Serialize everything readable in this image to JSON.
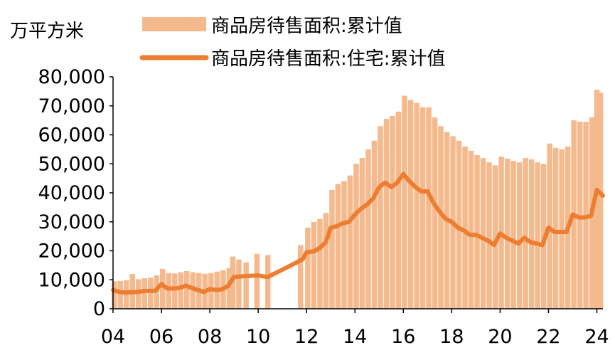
{
  "chart_data": {
    "type": "bar+line",
    "unit": "万平方米",
    "x_tick_labels": [
      "04",
      "06",
      "08",
      "10",
      "12",
      "14",
      "16",
      "18",
      "20",
      "22",
      "24"
    ],
    "x_range": [
      2004.0,
      2024.25
    ],
    "y_tick_labels": [
      "0",
      "10,000",
      "20,000",
      "30,000",
      "40,000",
      "50,000",
      "60,000",
      "70,000",
      "80,000"
    ],
    "ylim": [
      0,
      80000
    ],
    "legend_position": "top",
    "grid": false,
    "series": [
      {
        "name": "商品房待售面积:累计值",
        "type": "bar",
        "color": "#F4B98C",
        "points": [
          [
            2004.05,
            9500
          ],
          [
            2004.3,
            9600
          ],
          [
            2004.55,
            9800
          ],
          [
            2004.8,
            12000
          ],
          [
            2005.05,
            10200
          ],
          [
            2005.3,
            10500
          ],
          [
            2005.55,
            10700
          ],
          [
            2005.8,
            11500
          ],
          [
            2006.05,
            13800
          ],
          [
            2006.3,
            12300
          ],
          [
            2006.55,
            12200
          ],
          [
            2006.8,
            12600
          ],
          [
            2007.05,
            13000
          ],
          [
            2007.3,
            12600
          ],
          [
            2007.55,
            12300
          ],
          [
            2007.8,
            12100
          ],
          [
            2008.05,
            12300
          ],
          [
            2008.3,
            12800
          ],
          [
            2008.55,
            13300
          ],
          [
            2008.8,
            14000
          ],
          [
            2008.95,
            18000
          ],
          [
            2009.2,
            17000
          ],
          [
            2009.5,
            16000
          ],
          [
            2009.95,
            19000
          ],
          [
            2010.4,
            18500
          ],
          [
            2011.75,
            22000
          ],
          [
            2012.05,
            28000
          ],
          [
            2012.3,
            30000
          ],
          [
            2012.55,
            31000
          ],
          [
            2012.8,
            33000
          ],
          [
            2013.05,
            41000
          ],
          [
            2013.3,
            43000
          ],
          [
            2013.55,
            44000
          ],
          [
            2013.8,
            46000
          ],
          [
            2014.05,
            50000
          ],
          [
            2014.3,
            52000
          ],
          [
            2014.55,
            55000
          ],
          [
            2014.8,
            58000
          ],
          [
            2015.05,
            63000
          ],
          [
            2015.3,
            65500
          ],
          [
            2015.55,
            66500
          ],
          [
            2015.8,
            68000
          ],
          [
            2016.05,
            73500
          ],
          [
            2016.3,
            72000
          ],
          [
            2016.55,
            71000
          ],
          [
            2016.8,
            69500
          ],
          [
            2017.05,
            69500
          ],
          [
            2017.3,
            66000
          ],
          [
            2017.55,
            63000
          ],
          [
            2017.8,
            61000
          ],
          [
            2018.05,
            59500
          ],
          [
            2018.3,
            58000
          ],
          [
            2018.55,
            56000
          ],
          [
            2018.8,
            54500
          ],
          [
            2019.05,
            53000
          ],
          [
            2019.3,
            52000
          ],
          [
            2019.55,
            50500
          ],
          [
            2019.8,
            49500
          ],
          [
            2020.05,
            52500
          ],
          [
            2020.3,
            51800
          ],
          [
            2020.55,
            51000
          ],
          [
            2020.8,
            50500
          ],
          [
            2021.05,
            52000
          ],
          [
            2021.3,
            51500
          ],
          [
            2021.55,
            50500
          ],
          [
            2021.8,
            50000
          ],
          [
            2022.05,
            57000
          ],
          [
            2022.3,
            55500
          ],
          [
            2022.55,
            55000
          ],
          [
            2022.8,
            56000
          ],
          [
            2023.05,
            65000
          ],
          [
            2023.3,
            64500
          ],
          [
            2023.55,
            64500
          ],
          [
            2023.8,
            66000
          ],
          [
            2024.0,
            75500
          ],
          [
            2024.15,
            74500
          ]
        ]
      },
      {
        "name": "商品房待售面积:住宅:累计值",
        "type": "line",
        "color": "#ED7D31",
        "points": [
          [
            2004.0,
            6500
          ],
          [
            2004.25,
            5800
          ],
          [
            2004.5,
            5600
          ],
          [
            2004.75,
            5700
          ],
          [
            2005.0,
            5800
          ],
          [
            2005.25,
            6100
          ],
          [
            2005.5,
            6200
          ],
          [
            2005.75,
            6200
          ],
          [
            2006.0,
            8500
          ],
          [
            2006.25,
            7000
          ],
          [
            2006.5,
            7000
          ],
          [
            2006.75,
            7200
          ],
          [
            2007.0,
            8000
          ],
          [
            2007.25,
            7200
          ],
          [
            2007.5,
            6500
          ],
          [
            2007.75,
            5800
          ],
          [
            2008.0,
            6800
          ],
          [
            2008.25,
            6500
          ],
          [
            2008.5,
            6700
          ],
          [
            2008.75,
            7800
          ],
          [
            2009.0,
            11000
          ],
          [
            2009.5,
            11300
          ],
          [
            2010.0,
            11500
          ],
          [
            2010.2,
            11200
          ],
          [
            2010.4,
            11000
          ],
          [
            2011.0,
            13500
          ],
          [
            2011.6,
            16000
          ],
          [
            2011.85,
            17200
          ],
          [
            2012.0,
            19500
          ],
          [
            2012.3,
            19800
          ],
          [
            2012.55,
            21000
          ],
          [
            2012.8,
            23000
          ],
          [
            2013.0,
            28000
          ],
          [
            2013.25,
            28500
          ],
          [
            2013.5,
            29500
          ],
          [
            2013.75,
            30000
          ],
          [
            2014.0,
            32500
          ],
          [
            2014.25,
            34500
          ],
          [
            2014.5,
            36000
          ],
          [
            2014.75,
            38000
          ],
          [
            2015.0,
            42000
          ],
          [
            2015.25,
            43500
          ],
          [
            2015.5,
            42000
          ],
          [
            2015.75,
            43500
          ],
          [
            2016.0,
            46500
          ],
          [
            2016.25,
            44000
          ],
          [
            2016.5,
            42000
          ],
          [
            2016.75,
            40500
          ],
          [
            2017.0,
            40500
          ],
          [
            2017.25,
            36500
          ],
          [
            2017.5,
            33500
          ],
          [
            2017.75,
            31000
          ],
          [
            2018.0,
            30000
          ],
          [
            2018.25,
            28000
          ],
          [
            2018.5,
            27000
          ],
          [
            2018.75,
            25500
          ],
          [
            2019.0,
            25500
          ],
          [
            2019.25,
            24500
          ],
          [
            2019.5,
            23500
          ],
          [
            2019.75,
            22000
          ],
          [
            2020.0,
            26000
          ],
          [
            2020.25,
            24500
          ],
          [
            2020.5,
            23500
          ],
          [
            2020.75,
            22500
          ],
          [
            2021.0,
            24500
          ],
          [
            2021.25,
            23000
          ],
          [
            2021.5,
            22500
          ],
          [
            2021.75,
            22000
          ],
          [
            2022.0,
            28000
          ],
          [
            2022.25,
            26500
          ],
          [
            2022.5,
            26500
          ],
          [
            2022.75,
            26500
          ],
          [
            2023.0,
            32500
          ],
          [
            2023.25,
            31500
          ],
          [
            2023.5,
            31500
          ],
          [
            2023.75,
            32000
          ],
          [
            2024.0,
            41000
          ],
          [
            2024.25,
            39000
          ]
        ]
      }
    ]
  }
}
